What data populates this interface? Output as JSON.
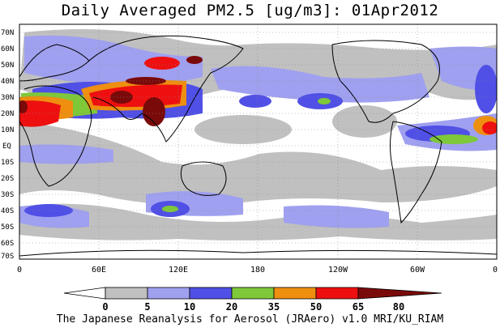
{
  "title": "Daily Averaged PM2.5 [ug/m3]: 01Apr2012",
  "credit": "The Japanese Reanalysis for Aerosol (JRAero) v1.0 MRI/KU_RIAM",
  "map": {
    "lat_labels": [
      "70N",
      "60N",
      "50N",
      "40N",
      "30N",
      "20N",
      "10N",
      "EQ",
      "10S",
      "20S",
      "30S",
      "40S",
      "50S",
      "60S",
      "70S"
    ],
    "lon_labels": [
      "0",
      "60E",
      "120E",
      "180",
      "120W",
      "60W",
      "0"
    ]
  },
  "colorbar": {
    "ticks": [
      "0",
      "5",
      "10",
      "20",
      "35",
      "50",
      "65",
      "80"
    ],
    "colors": [
      "#ffffff",
      "#c0c0c0",
      "#a0a0f0",
      "#5050e6",
      "#7ec83a",
      "#ee8f10",
      "#ee1010",
      "#7a0a0a"
    ]
  }
}
